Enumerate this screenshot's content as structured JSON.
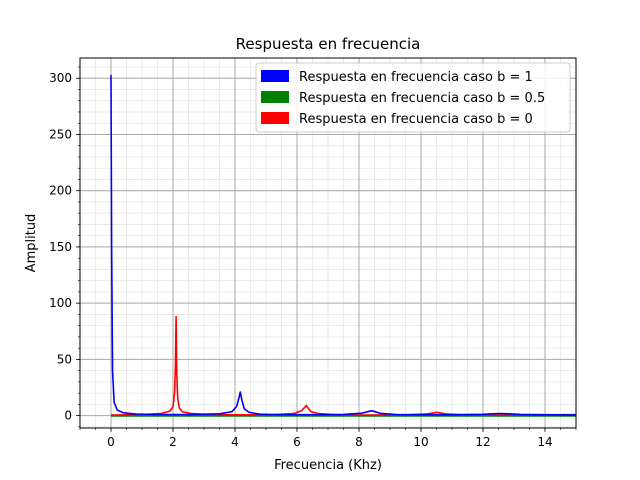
{
  "chart_data": {
    "type": "line",
    "title": "Respuesta en frecuencia",
    "xlabel": "Frecuencia (Khz)",
    "ylabel": "Amplitud",
    "xlim": [
      -1,
      15
    ],
    "ylim": [
      -11,
      318
    ],
    "xticks": [
      0,
      2,
      4,
      6,
      8,
      10,
      12,
      14
    ],
    "yticks": [
      0,
      50,
      100,
      150,
      200,
      250,
      300
    ],
    "grid": true,
    "minor_grid": true,
    "legend_position": "top-right",
    "series": [
      {
        "name": "Respuesta en frecuencia caso b = 1",
        "color": "#0000ff",
        "x": [
          0,
          0.02,
          0.05,
          0.1,
          0.2,
          0.4,
          0.8,
          1.5,
          2.5,
          3.5,
          3.9,
          4.05,
          4.12,
          4.17,
          4.22,
          4.3,
          4.45,
          4.8,
          5.5,
          6.5,
          7.5,
          8.1,
          8.3,
          8.4,
          8.5,
          8.7,
          9.2,
          10,
          11,
          12,
          12.4,
          12.6,
          12.8,
          13.2,
          14,
          15
        ],
        "y": [
          303,
          150,
          40,
          12,
          5,
          2.5,
          1.4,
          1,
          1,
          1.6,
          3.5,
          8,
          15,
          21,
          14,
          6,
          3,
          1.3,
          0.9,
          0.9,
          1.1,
          2.2,
          3.6,
          4.4,
          3.6,
          2,
          1,
          0.8,
          0.8,
          1.2,
          1.7,
          1.9,
          1.6,
          1.1,
          0.7,
          0.6
        ]
      },
      {
        "name": "Respuesta en frecuencia caso b = 0.5",
        "color": "#008000",
        "x": [
          0,
          15
        ],
        "y": [
          0,
          0
        ]
      },
      {
        "name": "Respuesta en frecuencia caso b = 0",
        "color": "#ff0000",
        "x": [
          0,
          1,
          1.6,
          1.9,
          2.0,
          2.05,
          2.08,
          2.1,
          2.12,
          2.15,
          2.2,
          2.3,
          2.6,
          3.2,
          4.2,
          5.2,
          5.9,
          6.15,
          6.27,
          6.3,
          6.35,
          6.45,
          6.7,
          7.2,
          8.2,
          9.5,
          10.2,
          10.45,
          10.5,
          10.6,
          10.8,
          11.3,
          12.2,
          13,
          14,
          15
        ],
        "y": [
          0.5,
          1,
          1.8,
          4,
          8,
          20,
          45,
          88,
          40,
          16,
          7,
          3.5,
          1.8,
          0.9,
          0.7,
          0.9,
          1.8,
          4.5,
          8,
          9,
          7,
          3.5,
          1.8,
          0.8,
          0.5,
          0.7,
          1.5,
          2.6,
          3,
          2.5,
          1.5,
          0.7,
          0.5,
          0.7,
          0.9,
          0.9
        ]
      }
    ]
  }
}
